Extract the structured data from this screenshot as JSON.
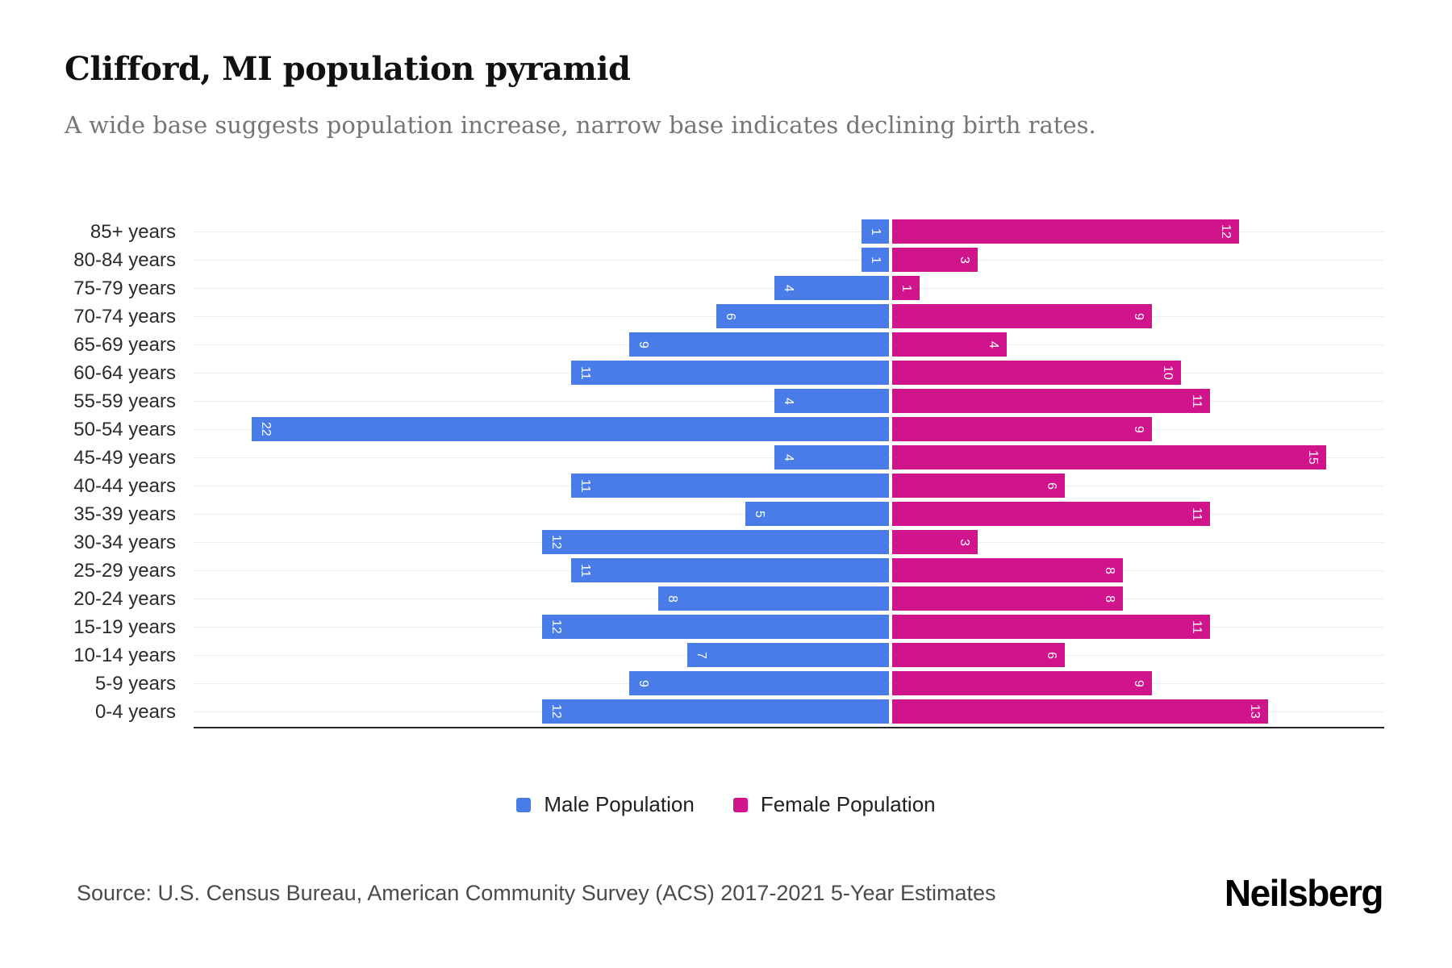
{
  "header": {
    "title": "Clifford, MI population pyramid",
    "subtitle": "A wide base suggests population increase, narrow base indicates declining birth rates."
  },
  "chart_data": {
    "type": "bar",
    "variant": "population-pyramid",
    "title": "Clifford, MI population pyramid",
    "categories": [
      "85+ years",
      "80-84 years",
      "75-79 years",
      "70-74 years",
      "65-69 years",
      "60-64 years",
      "55-59 years",
      "50-54 years",
      "45-49 years",
      "40-44 years",
      "35-39 years",
      "30-34 years",
      "25-29 years",
      "20-24 years",
      "15-19 years",
      "10-14 years",
      "5-9 years",
      "0-4 years"
    ],
    "series": [
      {
        "name": "Male Population",
        "side": "left",
        "color": "#4a7ce8",
        "values": [
          1,
          1,
          4,
          6,
          9,
          11,
          4,
          22,
          4,
          11,
          5,
          12,
          11,
          8,
          12,
          7,
          9,
          12
        ]
      },
      {
        "name": "Female Population",
        "side": "right",
        "color": "#d0158c",
        "values": [
          12,
          3,
          1,
          9,
          4,
          10,
          11,
          9,
          15,
          6,
          11,
          3,
          8,
          8,
          11,
          6,
          9,
          13
        ]
      }
    ],
    "value_labels": "inside-bar-end, rotated 90deg",
    "axis": {
      "left_max": 24,
      "right_max": 17
    },
    "grid": true,
    "legend_position": "bottom-center"
  },
  "legend": {
    "items": [
      {
        "label": "Male Population",
        "color": "#4a7ce8"
      },
      {
        "label": "Female Population",
        "color": "#d0158c"
      }
    ]
  },
  "footer": {
    "source": "Source: U.S. Census Bureau, American Community Survey (ACS) 2017-2021 5-Year Estimates",
    "brand": "Neilsberg"
  }
}
